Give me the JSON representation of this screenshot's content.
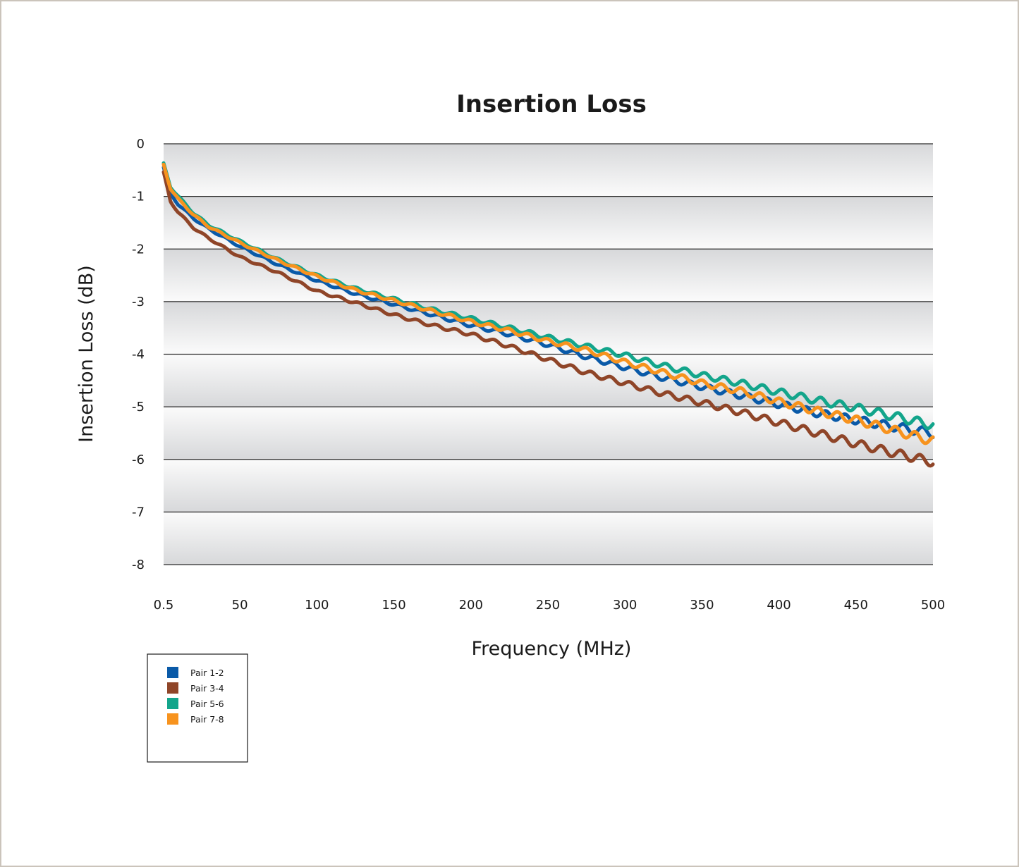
{
  "chart_data": {
    "type": "line",
    "title": "Insertion Loss",
    "xlabel": "Frequency (MHz)",
    "ylabel": "Insertion Loss (dB)",
    "x_tick_labels": [
      "0.5",
      "50",
      "100",
      "150",
      "200",
      "250",
      "300",
      "350",
      "400",
      "450",
      "500"
    ],
    "y_tick_labels": [
      "0",
      "-1",
      "-2",
      "-3",
      "-4",
      "-5",
      "-6",
      "-7",
      "-8"
    ],
    "xlim": [
      0.5,
      500
    ],
    "ylim": [
      -8,
      0
    ],
    "grid": true,
    "legend_position": "bottom-left, below plot",
    "series": [
      {
        "name": "Pair 1-2",
        "color": "#0a5aa8",
        "x": [
          0.5,
          5,
          10,
          20,
          30,
          50,
          75,
          100,
          125,
          150,
          175,
          200,
          225,
          250,
          275,
          300,
          325,
          350,
          375,
          400,
          425,
          450,
          475,
          500
        ],
        "y": [
          -0.45,
          -0.95,
          -1.15,
          -1.42,
          -1.62,
          -1.95,
          -2.3,
          -2.6,
          -2.85,
          -3.05,
          -3.25,
          -3.45,
          -3.62,
          -3.82,
          -4.05,
          -4.25,
          -4.45,
          -4.62,
          -4.78,
          -4.95,
          -5.12,
          -5.25,
          -5.38,
          -5.5
        ]
      },
      {
        "name": "Pair 3-4",
        "color": "#8f4528",
        "x": [
          0.5,
          5,
          10,
          20,
          30,
          50,
          75,
          100,
          125,
          150,
          175,
          200,
          225,
          250,
          275,
          300,
          325,
          350,
          375,
          400,
          425,
          450,
          475,
          500
        ],
        "y": [
          -0.55,
          -1.1,
          -1.3,
          -1.6,
          -1.8,
          -2.15,
          -2.45,
          -2.8,
          -3.02,
          -3.25,
          -3.45,
          -3.62,
          -3.85,
          -4.1,
          -4.35,
          -4.55,
          -4.75,
          -4.92,
          -5.1,
          -5.3,
          -5.5,
          -5.7,
          -5.88,
          -6.05
        ]
      },
      {
        "name": "Pair 5-6",
        "color": "#13a58b",
        "x": [
          0.5,
          5,
          10,
          20,
          30,
          50,
          75,
          100,
          125,
          150,
          175,
          200,
          225,
          250,
          275,
          300,
          325,
          350,
          375,
          400,
          425,
          450,
          475,
          500
        ],
        "y": [
          -0.38,
          -0.82,
          -1.0,
          -1.32,
          -1.55,
          -1.85,
          -2.2,
          -2.5,
          -2.75,
          -2.95,
          -3.15,
          -3.32,
          -3.5,
          -3.68,
          -3.85,
          -4.02,
          -4.22,
          -4.4,
          -4.55,
          -4.72,
          -4.88,
          -5.02,
          -5.18,
          -5.35
        ]
      },
      {
        "name": "Pair 7-8",
        "color": "#f7931e",
        "x": [
          0.5,
          5,
          10,
          20,
          30,
          50,
          75,
          100,
          125,
          150,
          175,
          200,
          225,
          250,
          275,
          300,
          325,
          350,
          375,
          400,
          425,
          450,
          475,
          500
        ],
        "y": [
          -0.4,
          -0.85,
          -1.05,
          -1.35,
          -1.58,
          -1.88,
          -2.22,
          -2.52,
          -2.78,
          -2.98,
          -3.18,
          -3.38,
          -3.55,
          -3.75,
          -3.92,
          -4.15,
          -4.35,
          -4.55,
          -4.7,
          -4.9,
          -5.08,
          -5.25,
          -5.45,
          -5.65
        ]
      }
    ]
  }
}
